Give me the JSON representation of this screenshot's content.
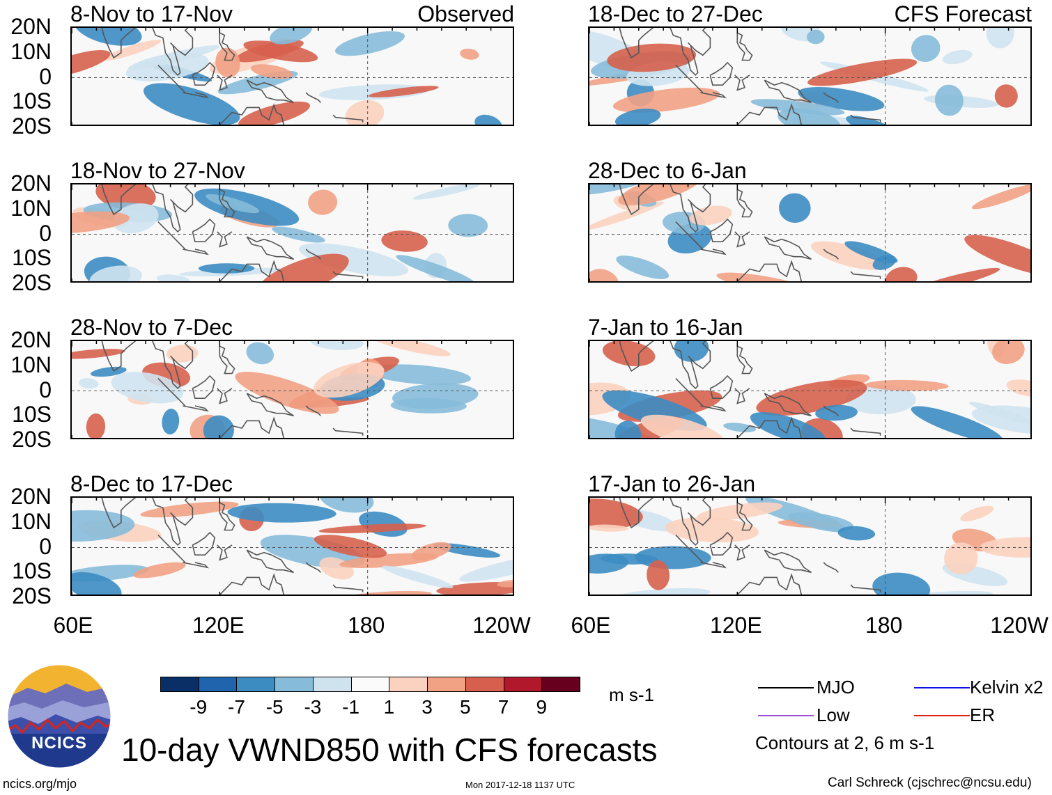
{
  "chart_data": {
    "type": "heatmap",
    "title": "10-day VWND850 with CFS forecasts",
    "variable": "VWND850",
    "units": "m s-1",
    "color_levels": [
      -9,
      -7,
      -5,
      -3,
      -1,
      1,
      3,
      5,
      7,
      9
    ],
    "color_scale": [
      "#0a2f66",
      "#1f64ad",
      "#3c8cc2",
      "#86bbd9",
      "#cfe3ef",
      "#fbfbfb",
      "#fbd2bf",
      "#f1a184",
      "#d6604d",
      "#b2182b",
      "#67001f"
    ],
    "latitude_ticks": [
      "20N",
      "10N",
      "0",
      "10S",
      "20S"
    ],
    "longitude_ticks": [
      "60E",
      "120E",
      "180",
      "120W"
    ],
    "lat_range": [
      -20,
      20
    ],
    "lon_range": [
      60,
      240
    ],
    "observed_label": "Observed",
    "forecast_label": "CFS Forecast",
    "panels": [
      {
        "period": "8-Nov to 17-Nov",
        "source": "Observed"
      },
      {
        "period": "18-Nov to 27-Nov",
        "source": "Observed"
      },
      {
        "period": "28-Nov to 7-Dec",
        "source": "Observed"
      },
      {
        "period": "8-Dec to 17-Dec",
        "source": "Observed"
      },
      {
        "period": "18-Dec to 27-Dec",
        "source": "CFS Forecast"
      },
      {
        "period": "28-Dec to 6-Jan",
        "source": "CFS Forecast"
      },
      {
        "period": "7-Jan to 16-Jan",
        "source": "CFS Forecast"
      },
      {
        "period": "17-Jan to 26-Jan",
        "source": "CFS Forecast"
      }
    ],
    "legend": {
      "contour_types": [
        {
          "name": "MJO",
          "color": "#000000"
        },
        {
          "name": "Low",
          "color": "#9b4dd6"
        },
        {
          "name": "Kelvin x2",
          "color": "#1010e8"
        },
        {
          "name": "ER",
          "color": "#e02010"
        }
      ],
      "contour_note": "Contours at 2, 6 m s-1"
    }
  },
  "footer": {
    "logo_text": "NCICS",
    "url": "ncics.org/mjo",
    "timestamp": "Mon 2017-12-18 1137 UTC",
    "credit": "Carl Schreck (cjschrec@ncsu.edu)"
  }
}
